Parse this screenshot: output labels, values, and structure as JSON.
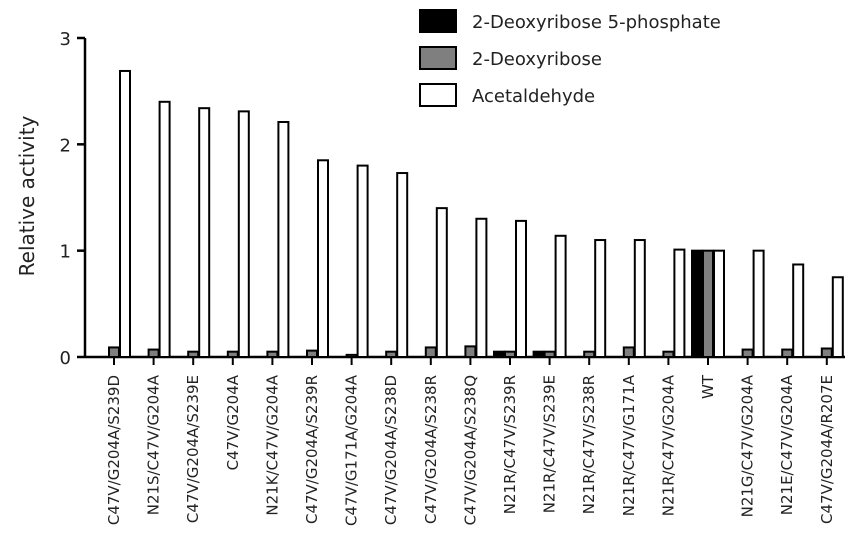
{
  "chart_data": {
    "type": "bar",
    "title": "",
    "xlabel": "",
    "ylabel": "Relative activity",
    "ylim": [
      0,
      3
    ],
    "yticks": [
      0,
      1,
      2,
      3
    ],
    "grid": false,
    "legend_position": "top-right",
    "categories": [
      "C47V/G204A/S239D",
      "N21S/C47V/G204A",
      "C47V/G204A/S239E",
      "C47V/G204A",
      "N21K/C47V/G204A",
      "C47V/G204A/S239R",
      "C47V/G171A/G204A",
      "C47V/G204A/S238D",
      "C47V/G204A/S238R",
      "C47V/G204A/S238Q",
      "N21R/C47V/S239R",
      "N21R/C47V/S239E",
      "N21R/C47V/S238R",
      "N21R/C47V/G171A",
      "N21R/C47V/G204A",
      "WT",
      "N21G/C47V/G204A",
      "N21E/C47V/G204A",
      "C47V/G204A/R207E"
    ],
    "series": [
      {
        "name": "2-Deoxyribose 5-phosphate",
        "color": "#000000",
        "values": [
          0,
          0,
          0,
          0,
          0,
          0,
          0,
          0,
          0,
          0,
          0.05,
          0.05,
          0,
          0,
          0,
          1.0,
          0,
          0,
          0
        ]
      },
      {
        "name": "2-Deoxyribose",
        "color": "#7f7f7f",
        "values": [
          0.09,
          0.07,
          0.05,
          0.05,
          0.05,
          0.06,
          0.02,
          0.05,
          0.09,
          0.1,
          0.05,
          0.05,
          0.05,
          0.09,
          0.05,
          1.0,
          0.07,
          0.07,
          0.08
        ]
      },
      {
        "name": "Acetaldehyde",
        "color": "#ffffff",
        "values": [
          2.69,
          2.4,
          2.34,
          2.31,
          2.21,
          1.85,
          1.8,
          1.73,
          1.4,
          1.3,
          1.28,
          1.14,
          1.1,
          1.1,
          1.01,
          1.0,
          1.0,
          0.87,
          0.75
        ]
      }
    ]
  }
}
